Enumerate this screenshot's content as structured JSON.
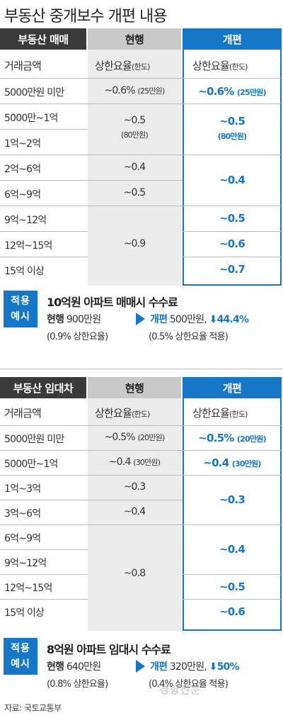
{
  "title": "부동산 중개보수 개편 내용",
  "table1": {
    "header": [
      "부동산 매매",
      "현행",
      "개편"
    ],
    "subheader": {
      "amount": "거래금액",
      "cur": "상한요율",
      "cur_note": "(한도)",
      "new": "상한요율",
      "new_note": "(한도)"
    },
    "rows": [
      "5000만원 미만",
      "5000만~1억",
      "1억~2억",
      "2억~6억",
      "6억~9억",
      "9억~12억",
      "12억~15억",
      "15억 이상"
    ],
    "current": {
      "r0": "~0.6%",
      "r0_note": "(25만원)",
      "r12": "~0.5",
      "r12_note": "(80만원)",
      "r3": "~0.4",
      "r4": "~0.5",
      "r567": "~0.9"
    },
    "reform": {
      "r0": "~0.6%",
      "r0_note": "(25만원)",
      "r12": "~0.5",
      "r12_note": "(80만원)",
      "r34": "~0.4",
      "r5": "~0.5",
      "r6": "~0.6",
      "r7": "~0.7"
    }
  },
  "example1": {
    "badge1": "적용",
    "badge2": "예시",
    "title": "10억원 아파트 매매시 수수료",
    "cur_label": "현행",
    "cur_value": "900만원",
    "cur_note": "(0.9% 상한요율)",
    "new_label": "개편",
    "new_value": "500만원,",
    "new_change": "44.4%",
    "new_note": "(0.5% 상한요율 적용)"
  },
  "table2": {
    "header": [
      "부동산 임대차",
      "현행",
      "개편"
    ],
    "subheader": {
      "amount": "거래금액",
      "cur": "상한요율",
      "cur_note": "(한도)",
      "new": "상한요율",
      "new_note": "(한도)"
    },
    "rows": [
      "5000만원 미만",
      "5000만~1억",
      "1억~3억",
      "3억~6억",
      "6억~9억",
      "9억~12억",
      "12억~15억",
      "15억 이상"
    ],
    "current": {
      "r0": "~0.5%",
      "r0_note": "(20만원)",
      "r1": "~0.4",
      "r1_note": "(30만원)",
      "r2": "~0.3",
      "r3": "~0.4",
      "r4567": "~0.8"
    },
    "reform": {
      "r0": "~0.5%",
      "r0_note": "(20만원)",
      "r1": "~0.4",
      "r1_note": "(30만원)",
      "r23": "~0.3",
      "r45": "~0.4",
      "r6": "~0.5",
      "r7": "~0.6"
    }
  },
  "example2": {
    "badge1": "적용",
    "badge2": "예시",
    "title": "8억원 아파트 임대시 수수료",
    "cur_label": "현행",
    "cur_value": "640만원",
    "cur_note": "(0.8% 상한요율)",
    "new_label": "개편",
    "new_value": "320만원,",
    "new_change": "50%",
    "new_note": "(0.4% 상한요율 적용)"
  },
  "source": "자료: 국토교통부",
  "watermark": "경향신문",
  "colors": {
    "accent": "#1677c8",
    "dark_header": "#3a3a3a",
    "gray_header": "#c9c9c9",
    "gray_column": "#ececec"
  }
}
